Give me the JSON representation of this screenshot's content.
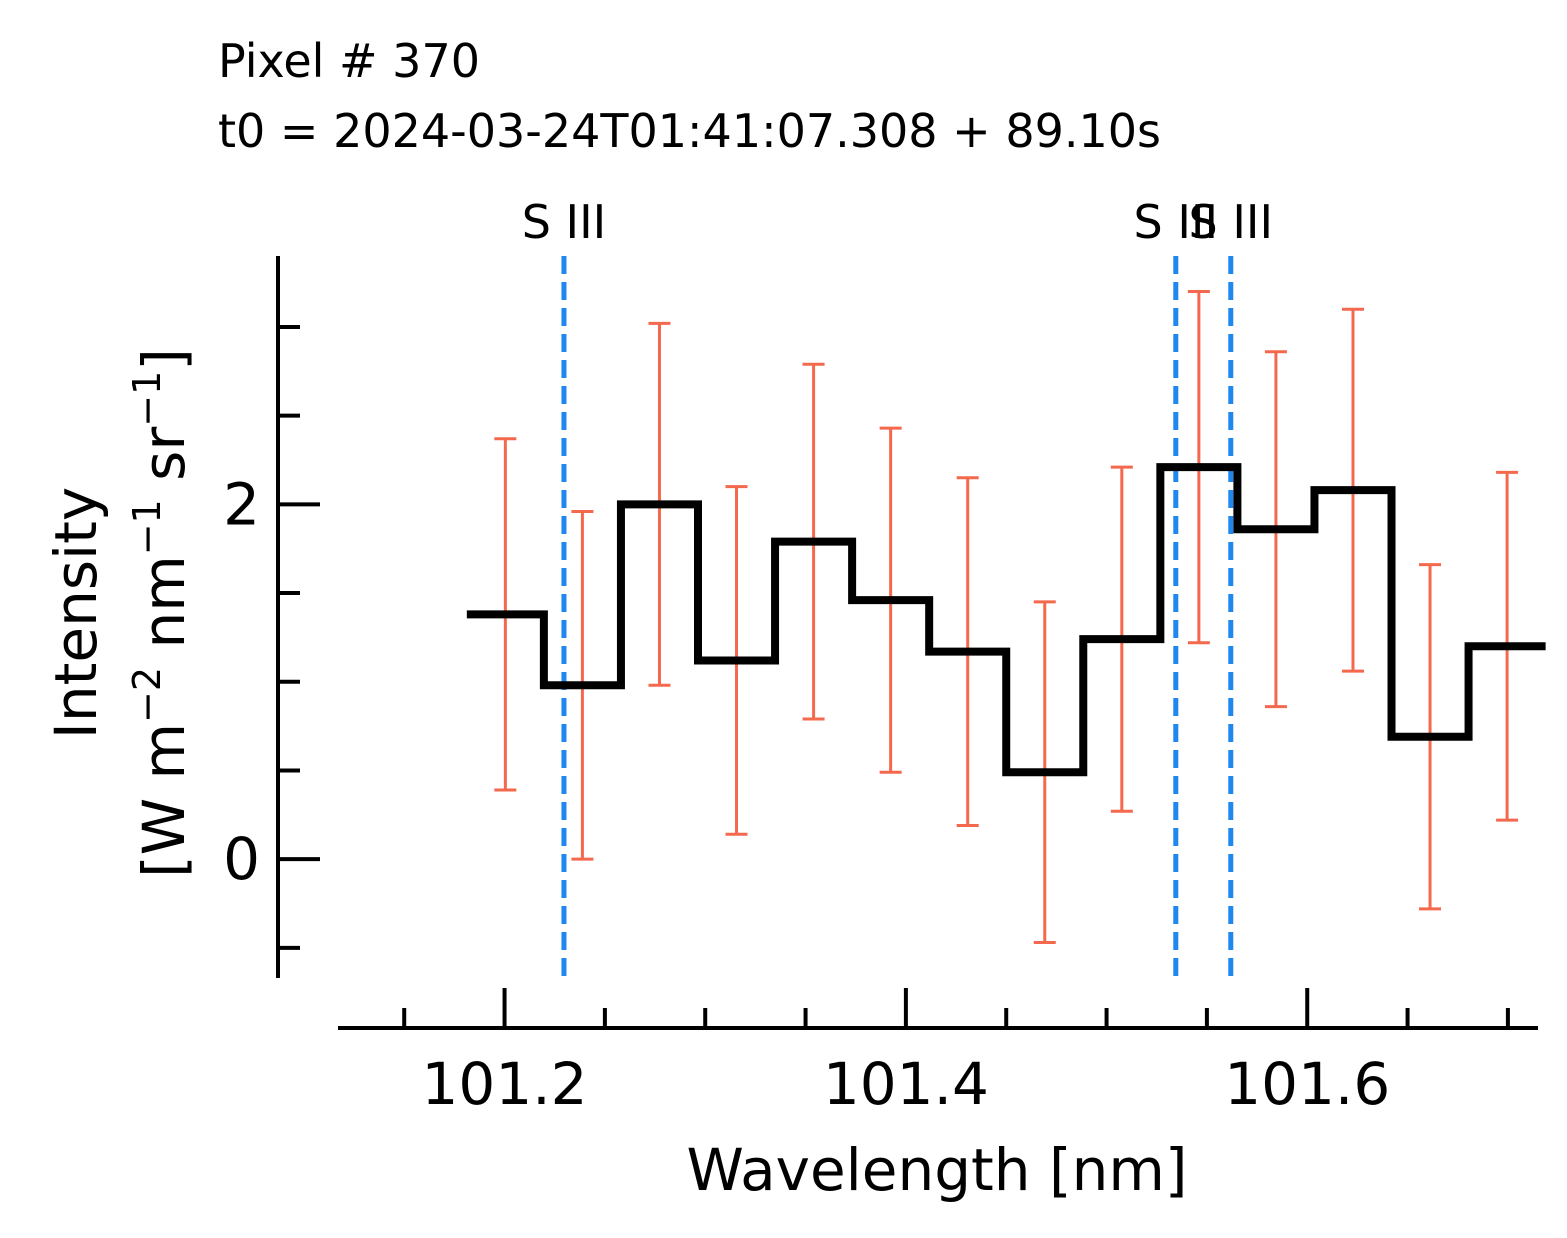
{
  "chart_data": {
    "type": "step",
    "title_lines": [
      "Pixel # 370",
      "t0 = 2024-03-24T01:41:07.308 + 89.10s"
    ],
    "xlabel": "Wavelength [nm]",
    "ylabel": {
      "line1": "Intensity",
      "line2_prefix": "[W m",
      "m_exp": "−2",
      "nm_text": " nm",
      "nm_exp": "−1",
      "sr_text": " sr",
      "sr_exp": "−1",
      "line2_suffix": "]"
    },
    "xlim": [
      101.117,
      101.715
    ],
    "ylim": [
      -0.67,
      3.4
    ],
    "x_major_ticks": [
      101.2,
      101.4,
      101.6
    ],
    "x_major_tick_labels": [
      "101.2",
      "101.4",
      "101.6"
    ],
    "x_minor_ticks": [
      101.15,
      101.25,
      101.3,
      101.35,
      101.45,
      101.5,
      101.55,
      101.65,
      101.7
    ],
    "y_major_ticks": [
      0,
      2
    ],
    "y_major_tick_labels": [
      "0",
      "2"
    ],
    "y_minor_ticks": [
      -0.5,
      0.5,
      1.0,
      1.5,
      2.5,
      3.0
    ],
    "series": [
      {
        "name": "intensity",
        "color": "#000000",
        "x": [
          101.1812,
          101.2196,
          101.258,
          101.2964,
          101.3348,
          101.3732,
          101.4116,
          101.45,
          101.4884,
          101.5268,
          101.5652,
          101.6036,
          101.642,
          101.6804
        ],
        "y": [
          1.38,
          0.98,
          2.0,
          1.12,
          1.79,
          1.46,
          1.17,
          0.49,
          1.24,
          2.21,
          1.86,
          2.08,
          0.69,
          1.2
        ],
        "yerr": [
          0.99,
          0.98,
          1.02,
          0.98,
          1.0,
          0.97,
          0.98,
          0.96,
          0.97,
          0.99,
          1.0,
          1.02,
          0.97,
          0.98
        ],
        "err_color": "#f4694e"
      }
    ],
    "annotations": {
      "line_color": "#1e88f0",
      "lines": [
        {
          "x": 101.2296,
          "label": "S III"
        },
        {
          "x": 101.5345,
          "label": "S III"
        },
        {
          "x": 101.5619,
          "label": "S III"
        }
      ]
    }
  }
}
